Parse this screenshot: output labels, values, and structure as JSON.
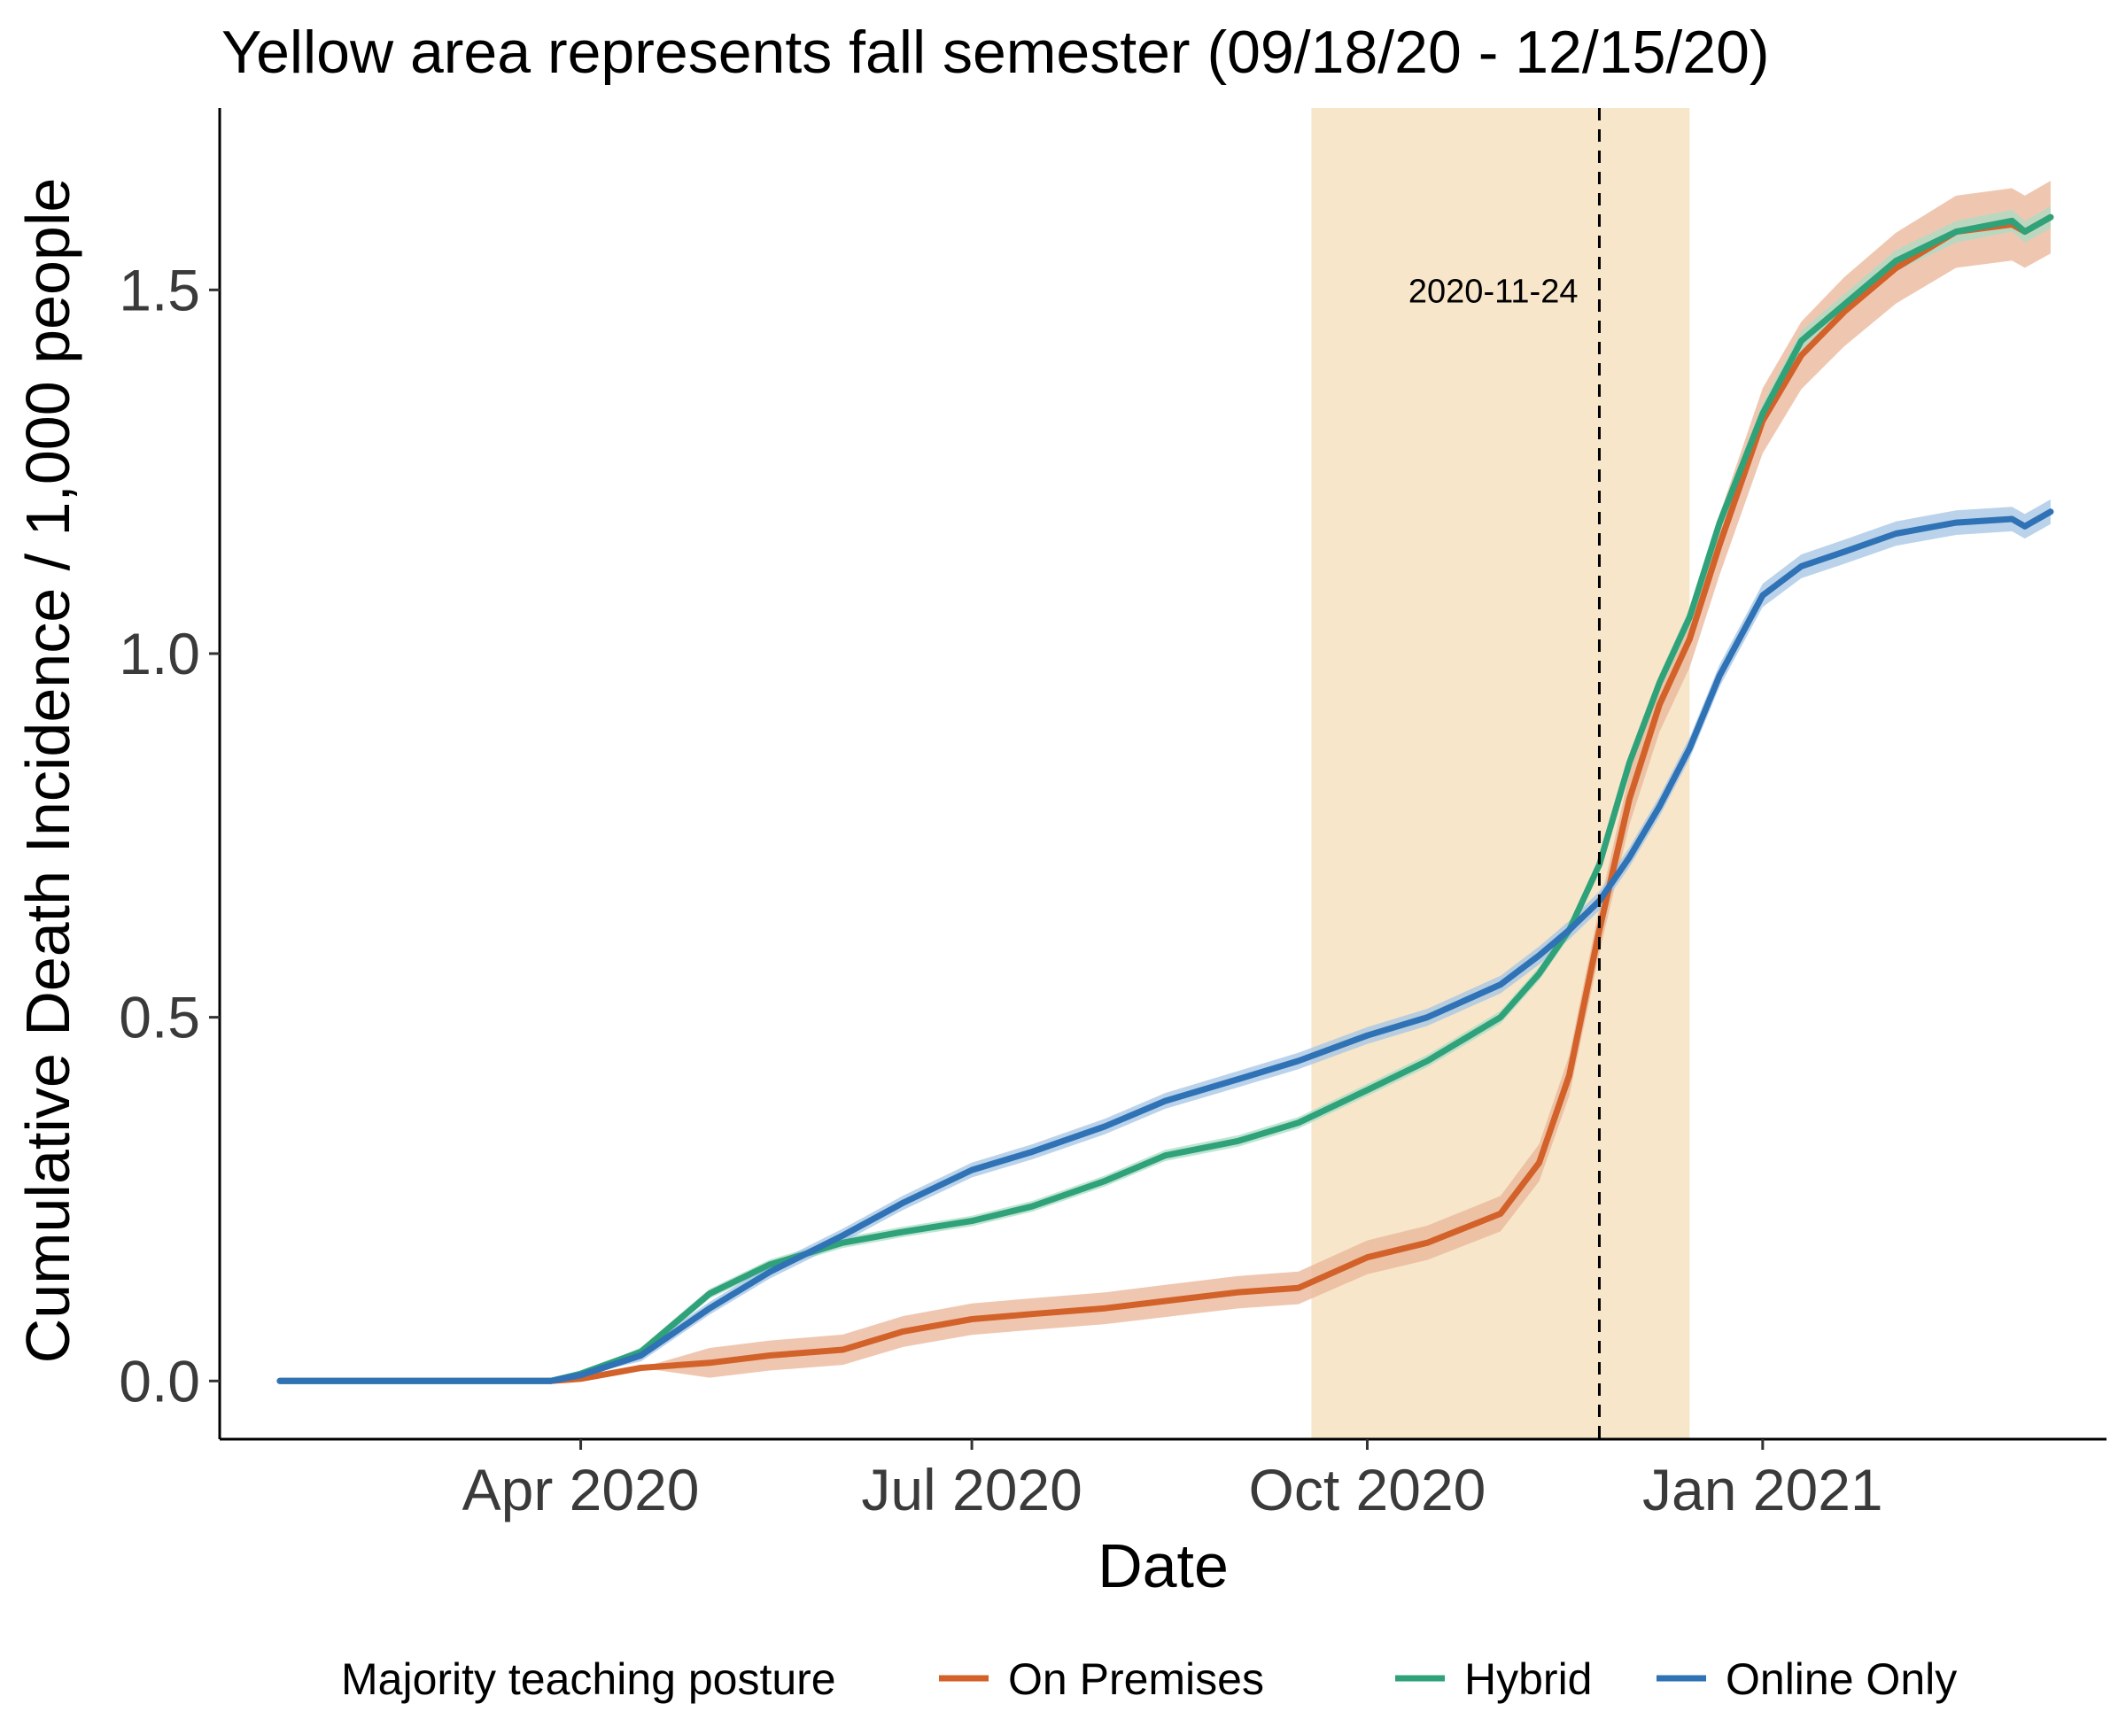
{
  "chart_data": {
    "type": "line",
    "title": "Yellow area represents fall semester (09/18/20 - 12/15/20)",
    "xlabel": "Date",
    "ylabel": "Cumulative Death Incidence / 1,000 people",
    "xlim": [
      "2020-01-08",
      "2021-03-22"
    ],
    "ylim": [
      -0.08,
      1.75
    ],
    "x_ticks": [
      {
        "date": "2020-04-01",
        "label": "Apr 2020"
      },
      {
        "date": "2020-07-01",
        "label": "Jul 2020"
      },
      {
        "date": "2020-10-01",
        "label": "Oct 2020"
      },
      {
        "date": "2021-01-01",
        "label": "Jan 2021"
      }
    ],
    "y_ticks": [
      {
        "value": 0.0,
        "label": "0.0"
      },
      {
        "value": 0.5,
        "label": "0.5"
      },
      {
        "value": 1.0,
        "label": "1.0"
      },
      {
        "value": 1.5,
        "label": "1.5"
      }
    ],
    "grid": false,
    "shaded_region": {
      "start": "2020-09-18",
      "end": "2020-12-15",
      "color": "#f7e6c9"
    },
    "vline": {
      "date": "2020-11-24",
      "label": "2020-11-24"
    },
    "legend": {
      "title": "Majority teaching posture",
      "position": "bottom"
    },
    "series": [
      {
        "name": "On Premises",
        "color": "#d2622a",
        "band_color": "#eab497",
        "points": [
          [
            "2020-01-22",
            0.0
          ],
          [
            "2020-03-01",
            0.0
          ],
          [
            "2020-03-25",
            0.0
          ],
          [
            "2020-04-01",
            0.003
          ],
          [
            "2020-04-15",
            0.018
          ],
          [
            "2020-05-01",
            0.025
          ],
          [
            "2020-05-15",
            0.035
          ],
          [
            "2020-06-01",
            0.043
          ],
          [
            "2020-06-15",
            0.068
          ],
          [
            "2020-07-01",
            0.085
          ],
          [
            "2020-07-15",
            0.092
          ],
          [
            "2020-08-01",
            0.1
          ],
          [
            "2020-08-15",
            0.11
          ],
          [
            "2020-09-01",
            0.122
          ],
          [
            "2020-09-15",
            0.128
          ],
          [
            "2020-10-01",
            0.17
          ],
          [
            "2020-10-15",
            0.19
          ],
          [
            "2020-11-01",
            0.23
          ],
          [
            "2020-11-10",
            0.3
          ],
          [
            "2020-11-17",
            0.42
          ],
          [
            "2020-11-24",
            0.62
          ],
          [
            "2020-12-01",
            0.8
          ],
          [
            "2020-12-08",
            0.93
          ],
          [
            "2020-12-15",
            1.02
          ],
          [
            "2020-12-22",
            1.15
          ],
          [
            "2021-01-01",
            1.32
          ],
          [
            "2021-01-10",
            1.41
          ],
          [
            "2021-01-20",
            1.47
          ],
          [
            "2021-02-01",
            1.53
          ],
          [
            "2021-02-15",
            1.58
          ],
          [
            "2021-02-28",
            1.59
          ],
          [
            "2021-03-03",
            1.58
          ],
          [
            "2021-03-09",
            1.6
          ]
        ],
        "band": 0.05
      },
      {
        "name": "Hybrid",
        "color": "#2fa27a",
        "band_color": "#a9dcc6",
        "points": [
          [
            "2020-01-22",
            0.0
          ],
          [
            "2020-03-01",
            0.0
          ],
          [
            "2020-03-25",
            0.0
          ],
          [
            "2020-04-01",
            0.01
          ],
          [
            "2020-04-15",
            0.04
          ],
          [
            "2020-05-01",
            0.12
          ],
          [
            "2020-05-15",
            0.16
          ],
          [
            "2020-06-01",
            0.19
          ],
          [
            "2020-06-15",
            0.205
          ],
          [
            "2020-07-01",
            0.22
          ],
          [
            "2020-07-15",
            0.24
          ],
          [
            "2020-08-01",
            0.275
          ],
          [
            "2020-08-15",
            0.31
          ],
          [
            "2020-09-01",
            0.33
          ],
          [
            "2020-09-15",
            0.355
          ],
          [
            "2020-10-01",
            0.4
          ],
          [
            "2020-10-15",
            0.44
          ],
          [
            "2020-11-01",
            0.5
          ],
          [
            "2020-11-10",
            0.56
          ],
          [
            "2020-11-17",
            0.62
          ],
          [
            "2020-11-24",
            0.71
          ],
          [
            "2020-12-01",
            0.85
          ],
          [
            "2020-12-08",
            0.96
          ],
          [
            "2020-12-15",
            1.05
          ],
          [
            "2020-12-22",
            1.18
          ],
          [
            "2021-01-01",
            1.33
          ],
          [
            "2021-01-10",
            1.43
          ],
          [
            "2021-01-20",
            1.48
          ],
          [
            "2021-02-01",
            1.54
          ],
          [
            "2021-02-15",
            1.58
          ],
          [
            "2021-02-28",
            1.595
          ],
          [
            "2021-03-03",
            1.58
          ],
          [
            "2021-03-09",
            1.6
          ]
        ],
        "band": 0.015
      },
      {
        "name": "Online Only",
        "color": "#2f72b5",
        "band_color": "#a3c4e4",
        "points": [
          [
            "2020-01-22",
            0.0
          ],
          [
            "2020-03-01",
            0.0
          ],
          [
            "2020-03-25",
            0.0
          ],
          [
            "2020-04-01",
            0.008
          ],
          [
            "2020-04-15",
            0.035
          ],
          [
            "2020-05-01",
            0.1
          ],
          [
            "2020-05-15",
            0.15
          ],
          [
            "2020-06-01",
            0.2
          ],
          [
            "2020-06-15",
            0.245
          ],
          [
            "2020-07-01",
            0.29
          ],
          [
            "2020-07-15",
            0.315
          ],
          [
            "2020-08-01",
            0.35
          ],
          [
            "2020-08-15",
            0.385
          ],
          [
            "2020-09-01",
            0.415
          ],
          [
            "2020-09-15",
            0.44
          ],
          [
            "2020-10-01",
            0.475
          ],
          [
            "2020-10-15",
            0.5
          ],
          [
            "2020-11-01",
            0.545
          ],
          [
            "2020-11-10",
            0.585
          ],
          [
            "2020-11-17",
            0.62
          ],
          [
            "2020-11-24",
            0.66
          ],
          [
            "2020-12-01",
            0.72
          ],
          [
            "2020-12-08",
            0.79
          ],
          [
            "2020-12-15",
            0.87
          ],
          [
            "2020-12-22",
            0.97
          ],
          [
            "2021-01-01",
            1.08
          ],
          [
            "2021-01-10",
            1.12
          ],
          [
            "2021-01-20",
            1.14
          ],
          [
            "2021-02-01",
            1.165
          ],
          [
            "2021-02-15",
            1.18
          ],
          [
            "2021-02-28",
            1.185
          ],
          [
            "2021-03-03",
            1.175
          ],
          [
            "2021-03-09",
            1.195
          ]
        ],
        "band": 0.02
      }
    ]
  }
}
